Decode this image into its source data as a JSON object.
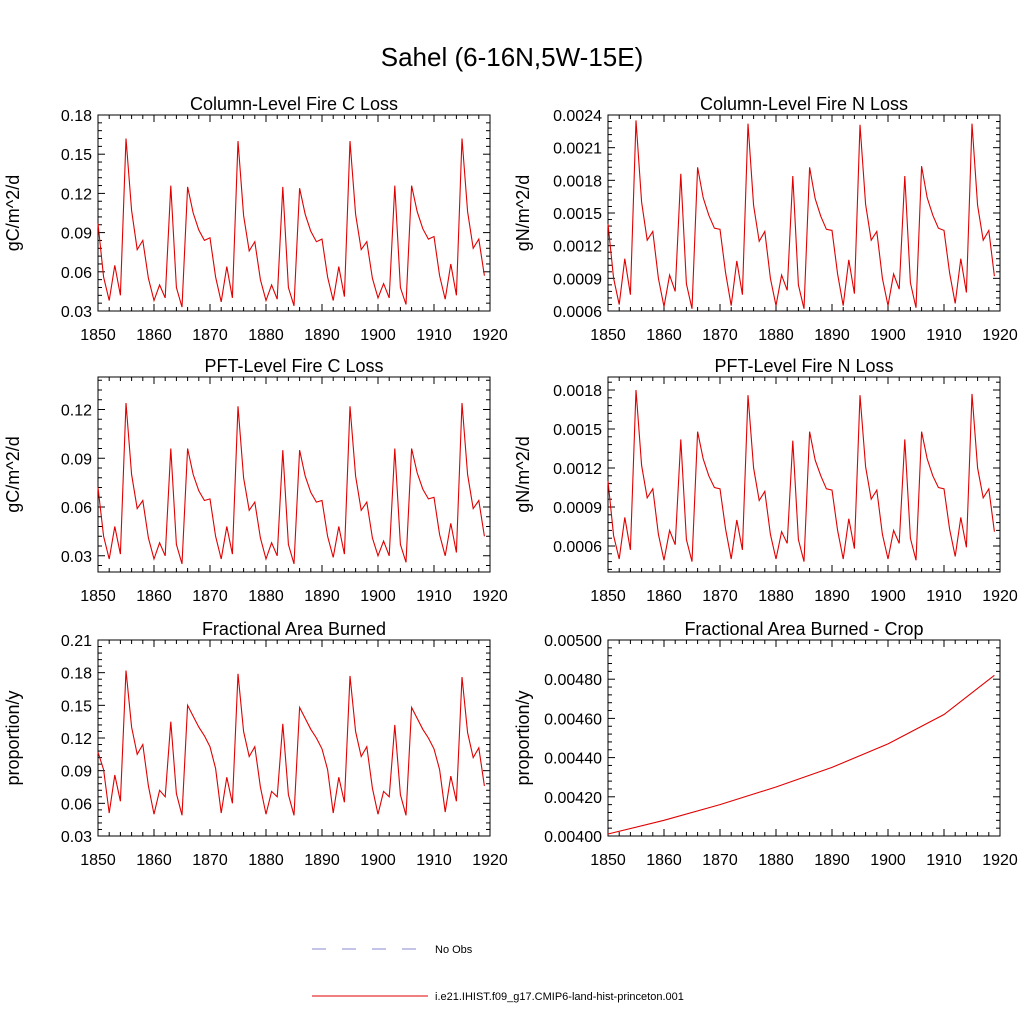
{
  "figure": {
    "title": "Sahel (6-16N,5W-15E)"
  },
  "legend": {
    "entries": [
      {
        "label": "No Obs",
        "color": "#8a8ad0",
        "style": "dashed"
      },
      {
        "label": "i.e21.IHIST.f09_g17.CMIP6-land-hist-princeton.001",
        "color": "#e00000",
        "style": "solid"
      }
    ]
  },
  "chart_data": [
    {
      "type": "line",
      "title": "Column-Level Fire C Loss",
      "ylabel": "gC/m^2/d",
      "xlim": [
        1850,
        1920
      ],
      "ylim": [
        0.03,
        0.18
      ],
      "xticks": [
        "1850",
        "1860",
        "1870",
        "1880",
        "1890",
        "1900",
        "1910",
        "1920"
      ],
      "yticks": [
        "0.03",
        "0.06",
        "0.09",
        "0.12",
        "0.15",
        "0.18"
      ],
      "ytick_values": [
        0.03,
        0.06,
        0.09,
        0.12,
        0.15,
        0.18
      ],
      "line_color": "#e00000",
      "x_start": 1850,
      "y": [
        0.097,
        0.056,
        0.038,
        0.065,
        0.042,
        0.162,
        0.107,
        0.077,
        0.084,
        0.055,
        0.038,
        0.05,
        0.04,
        0.126,
        0.048,
        0.033,
        0.125,
        0.105,
        0.092,
        0.084,
        0.086,
        0.056,
        0.037,
        0.064,
        0.04,
        0.16,
        0.103,
        0.076,
        0.083,
        0.054,
        0.038,
        0.05,
        0.039,
        0.125,
        0.048,
        0.034,
        0.124,
        0.104,
        0.091,
        0.083,
        0.085,
        0.056,
        0.038,
        0.064,
        0.041,
        0.16,
        0.104,
        0.077,
        0.083,
        0.055,
        0.04,
        0.051,
        0.04,
        0.126,
        0.048,
        0.035,
        0.126,
        0.106,
        0.093,
        0.085,
        0.087,
        0.057,
        0.039,
        0.066,
        0.042,
        0.162,
        0.106,
        0.078,
        0.085,
        0.057
      ]
    },
    {
      "type": "line",
      "title": "Column-Level Fire N Loss",
      "ylabel": "gN/m^2/d",
      "xlim": [
        1850,
        1920
      ],
      "ylim": [
        0.0006,
        0.0024
      ],
      "xticks": [
        "1850",
        "1860",
        "1870",
        "1880",
        "1890",
        "1900",
        "1910",
        "1920"
      ],
      "yticks": [
        "0.0006",
        "0.0009",
        "0.0012",
        "0.0015",
        "0.0018",
        "0.0021",
        "0.0024"
      ],
      "ytick_values": [
        0.0006,
        0.0009,
        0.0012,
        0.0015,
        0.0018,
        0.0021,
        0.0024
      ],
      "line_color": "#e00000",
      "x_start": 1850,
      "y": [
        0.0014,
        0.0009,
        0.00066,
        0.00108,
        0.00075,
        0.00235,
        0.0016,
        0.00125,
        0.00133,
        0.0009,
        0.00064,
        0.00093,
        0.00078,
        0.00186,
        0.00085,
        0.00062,
        0.00192,
        0.00164,
        0.00148,
        0.00136,
        0.00135,
        0.00095,
        0.00065,
        0.00106,
        0.00075,
        0.00232,
        0.00157,
        0.00124,
        0.00133,
        0.0009,
        0.00065,
        0.00093,
        0.00079,
        0.00184,
        0.00084,
        0.00062,
        0.00192,
        0.00163,
        0.00147,
        0.00135,
        0.00134,
        0.00094,
        0.00065,
        0.00107,
        0.00076,
        0.00231,
        0.00158,
        0.00125,
        0.00133,
        0.0009,
        0.00065,
        0.00094,
        0.0008,
        0.00184,
        0.00086,
        0.00063,
        0.00193,
        0.00164,
        0.00148,
        0.00136,
        0.00134,
        0.00095,
        0.00067,
        0.00108,
        0.00077,
        0.00232,
        0.00157,
        0.00125,
        0.00134,
        0.00092
      ]
    },
    {
      "type": "line",
      "title": "PFT-Level Fire C Loss",
      "ylabel": "gC/m^2/d",
      "xlim": [
        1850,
        1920
      ],
      "ylim": [
        0.02,
        0.14
      ],
      "xticks": [
        "1850",
        "1860",
        "1870",
        "1880",
        "1890",
        "1900",
        "1910",
        "1920"
      ],
      "yticks": [
        "0.03",
        "0.06",
        "0.09",
        "0.12"
      ],
      "ytick_values": [
        0.03,
        0.06,
        0.09,
        0.12
      ],
      "line_color": "#e00000",
      "x_start": 1850,
      "y": [
        0.072,
        0.042,
        0.028,
        0.048,
        0.031,
        0.124,
        0.08,
        0.059,
        0.064,
        0.041,
        0.028,
        0.038,
        0.03,
        0.096,
        0.037,
        0.025,
        0.096,
        0.08,
        0.07,
        0.064,
        0.065,
        0.042,
        0.028,
        0.048,
        0.031,
        0.122,
        0.078,
        0.058,
        0.063,
        0.041,
        0.028,
        0.038,
        0.03,
        0.095,
        0.037,
        0.025,
        0.095,
        0.079,
        0.069,
        0.063,
        0.064,
        0.042,
        0.029,
        0.048,
        0.031,
        0.122,
        0.079,
        0.058,
        0.063,
        0.041,
        0.03,
        0.039,
        0.03,
        0.096,
        0.037,
        0.026,
        0.096,
        0.081,
        0.071,
        0.065,
        0.066,
        0.043,
        0.03,
        0.05,
        0.032,
        0.124,
        0.08,
        0.059,
        0.064,
        0.042
      ]
    },
    {
      "type": "line",
      "title": "PFT-Level Fire N Loss",
      "ylabel": "gN/m^2/d",
      "xlim": [
        1850,
        1920
      ],
      "ylim": [
        0.0004,
        0.0019
      ],
      "xticks": [
        "1850",
        "1860",
        "1870",
        "1880",
        "1890",
        "1900",
        "1910",
        "1920"
      ],
      "yticks": [
        "0.0006",
        "0.0009",
        "0.0012",
        "0.0015",
        "0.0018"
      ],
      "ytick_values": [
        0.0006,
        0.0009,
        0.0012,
        0.0015,
        0.0018
      ],
      "line_color": "#e00000",
      "x_start": 1850,
      "y": [
        0.0011,
        0.00068,
        0.0005,
        0.00082,
        0.00057,
        0.0018,
        0.00122,
        0.00097,
        0.00104,
        0.00069,
        0.00049,
        0.00072,
        0.00061,
        0.00142,
        0.00065,
        0.00048,
        0.00148,
        0.00127,
        0.00114,
        0.00105,
        0.00104,
        0.00073,
        0.0005,
        0.0008,
        0.00057,
        0.00176,
        0.0012,
        0.00095,
        0.00102,
        0.00069,
        0.0005,
        0.00071,
        0.00062,
        0.00141,
        0.00065,
        0.00048,
        0.00148,
        0.00126,
        0.00114,
        0.00104,
        0.00103,
        0.00072,
        0.0005,
        0.00081,
        0.00058,
        0.00176,
        0.00121,
        0.00096,
        0.00103,
        0.00069,
        0.0005,
        0.00072,
        0.00062,
        0.00142,
        0.00066,
        0.00049,
        0.00148,
        0.00127,
        0.00114,
        0.00105,
        0.00104,
        0.00073,
        0.00052,
        0.00082,
        0.00059,
        0.00177,
        0.0012,
        0.00097,
        0.00104,
        0.00071
      ]
    },
    {
      "type": "line",
      "title": "Fractional Area Burned",
      "ylabel": "proportion/y",
      "xlim": [
        1850,
        1920
      ],
      "ylim": [
        0.03,
        0.21
      ],
      "xticks": [
        "1850",
        "1860",
        "1870",
        "1880",
        "1890",
        "1900",
        "1910",
        "1920"
      ],
      "yticks": [
        "0.03",
        "0.06",
        "0.09",
        "0.12",
        "0.15",
        "0.18",
        "0.21"
      ],
      "ytick_values": [
        0.03,
        0.06,
        0.09,
        0.12,
        0.15,
        0.18,
        0.21
      ],
      "line_color": "#e00000",
      "x_start": 1850,
      "y": [
        0.107,
        0.091,
        0.051,
        0.086,
        0.062,
        0.182,
        0.13,
        0.105,
        0.114,
        0.076,
        0.05,
        0.072,
        0.066,
        0.135,
        0.069,
        0.049,
        0.15,
        0.14,
        0.13,
        0.122,
        0.112,
        0.092,
        0.051,
        0.084,
        0.06,
        0.179,
        0.126,
        0.103,
        0.112,
        0.075,
        0.05,
        0.071,
        0.066,
        0.133,
        0.068,
        0.049,
        0.148,
        0.138,
        0.128,
        0.12,
        0.11,
        0.091,
        0.051,
        0.084,
        0.061,
        0.177,
        0.126,
        0.103,
        0.112,
        0.074,
        0.05,
        0.071,
        0.066,
        0.132,
        0.068,
        0.049,
        0.148,
        0.138,
        0.128,
        0.12,
        0.11,
        0.091,
        0.052,
        0.085,
        0.062,
        0.176,
        0.125,
        0.102,
        0.111,
        0.076
      ]
    },
    {
      "type": "line",
      "title": "Fractional Area Burned - Crop",
      "ylabel": "proportion/y",
      "xlim": [
        1850,
        1920
      ],
      "ylim": [
        0.004,
        0.005
      ],
      "xticks": [
        "1850",
        "1860",
        "1870",
        "1880",
        "1890",
        "1900",
        "1910",
        "1920"
      ],
      "yticks": [
        "0.00400",
        "0.00420",
        "0.00440",
        "0.00460",
        "0.00480",
        "0.00500"
      ],
      "ytick_values": [
        0.004,
        0.0042,
        0.0044,
        0.0046,
        0.0048,
        0.005
      ],
      "line_color": "#e00000",
      "points": [
        [
          1850,
          0.00401
        ],
        [
          1860,
          0.00408
        ],
        [
          1870,
          0.00416
        ],
        [
          1880,
          0.00425
        ],
        [
          1890,
          0.00435
        ],
        [
          1900,
          0.00447
        ],
        [
          1910,
          0.00462
        ],
        [
          1919,
          0.00482
        ]
      ]
    }
  ]
}
